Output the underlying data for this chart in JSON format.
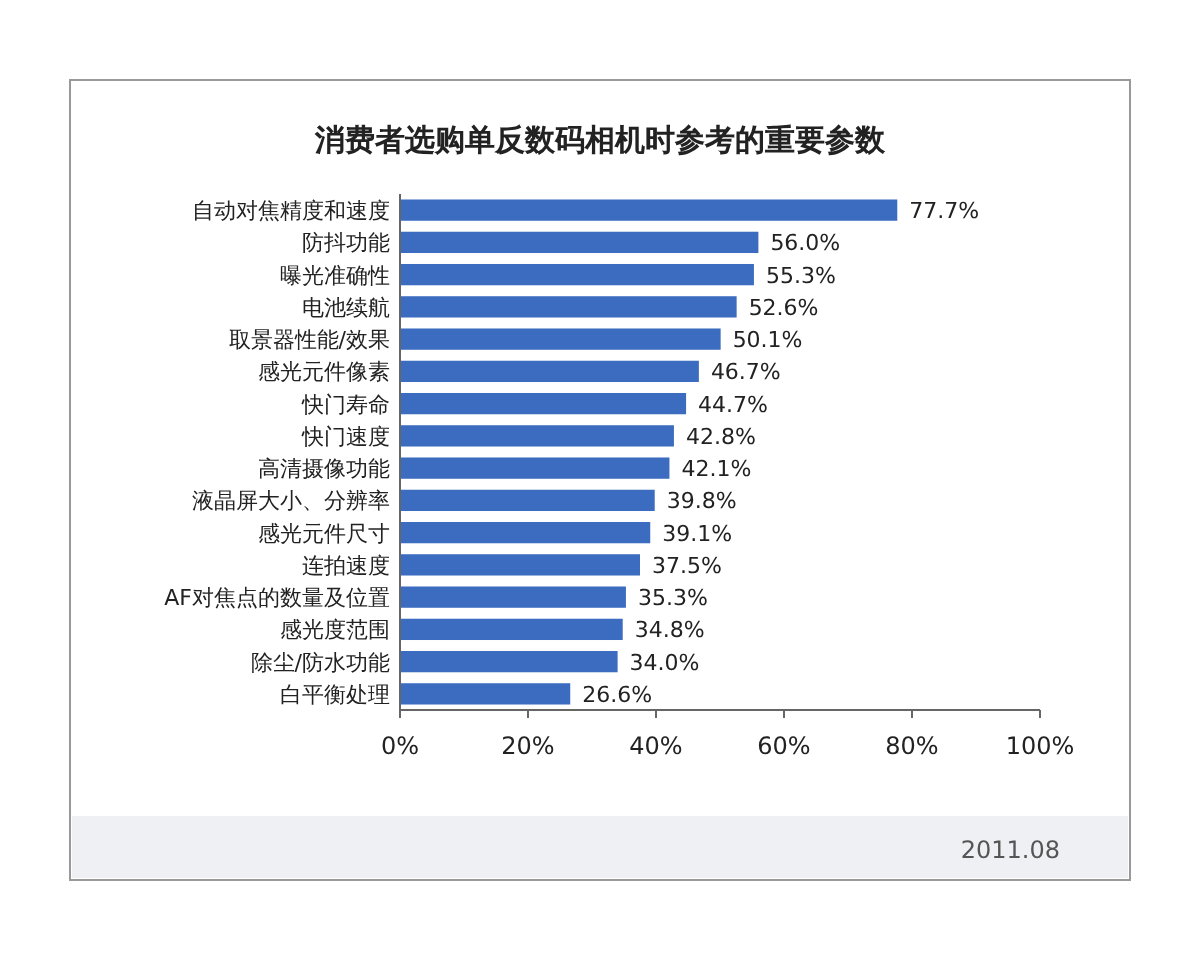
{
  "chart_data": {
    "type": "bar",
    "orientation": "horizontal",
    "title": "消费者选购单反数码相机时参考的重要参数",
    "categories": [
      "自动对焦精度和速度",
      "防抖功能",
      "曝光准确性",
      "电池续航",
      "取景器性能/效果",
      "感光元件像素",
      "快门寿命",
      "快门速度",
      "高清摄像功能",
      "液晶屏大小、分辨率",
      "感光元件尺寸",
      "连拍速度",
      "AF对焦点的数量及位置",
      "感光度范围",
      "除尘/防水功能",
      "白平衡处理"
    ],
    "values": [
      77.7,
      56.0,
      55.3,
      52.6,
      50.1,
      46.7,
      44.7,
      42.8,
      42.1,
      39.8,
      39.1,
      37.5,
      35.3,
      34.8,
      34.0,
      26.6
    ],
    "value_labels": [
      "77.7%",
      "56.0%",
      "55.3%",
      "52.6%",
      "50.1%",
      "46.7%",
      "44.7%",
      "42.8%",
      "42.1%",
      "39.8%",
      "39.1%",
      "37.5%",
      "35.3%",
      "34.8%",
      "34.0%",
      "26.6%"
    ],
    "color": "#3b6cc0",
    "xlim": [
      0,
      100
    ],
    "xticks": [
      {
        "value": 0,
        "label": "0%"
      },
      {
        "value": 20,
        "label": "20%"
      },
      {
        "value": 40,
        "label": "40%"
      },
      {
        "value": 60,
        "label": "60%"
      },
      {
        "value": 80,
        "label": "80%"
      },
      {
        "value": 100,
        "label": "100%"
      }
    ],
    "annotations": [
      "2011.08"
    ]
  }
}
